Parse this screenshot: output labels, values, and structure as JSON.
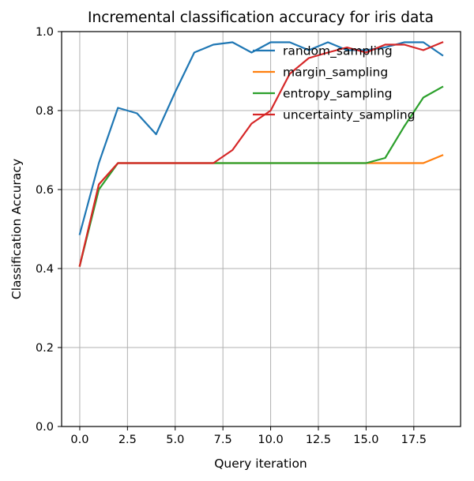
{
  "chart_data": {
    "type": "line",
    "title": "Incremental classification accuracy for iris data",
    "xlabel": "Query iteration",
    "ylabel": "Classification Accuracy",
    "xlim": [
      -0.95,
      19.95
    ],
    "ylim": [
      0.0,
      1.0
    ],
    "grid": true,
    "legend_position": "top-right",
    "x_ticks": [
      "0.0",
      "2.5",
      "5.0",
      "7.5",
      "10.0",
      "12.5",
      "15.0",
      "17.5"
    ],
    "y_ticks": [
      "0.0",
      "0.2",
      "0.4",
      "0.6",
      "0.8",
      "1.0"
    ],
    "x": [
      0,
      1,
      2,
      3,
      4,
      5,
      6,
      7,
      8,
      9,
      10,
      11,
      12,
      13,
      14,
      15,
      16,
      17,
      18,
      19
    ],
    "series": [
      {
        "name": "random_sampling",
        "color": "#1f77b4",
        "values": [
          0.487,
          0.667,
          0.807,
          0.793,
          0.74,
          0.847,
          0.947,
          0.967,
          0.973,
          0.947,
          0.973,
          0.973,
          0.953,
          0.973,
          0.953,
          0.953,
          0.96,
          0.973,
          0.973,
          0.94
        ]
      },
      {
        "name": "margin_sampling",
        "color": "#ff7f0e",
        "values": [
          0.407,
          0.613,
          0.667,
          0.667,
          0.667,
          0.667,
          0.667,
          0.667,
          0.667,
          0.667,
          0.667,
          0.667,
          0.667,
          0.667,
          0.667,
          0.667,
          0.667,
          0.667,
          0.667,
          0.687
        ]
      },
      {
        "name": "entropy_sampling",
        "color": "#2ca02c",
        "values": [
          0.407,
          0.6,
          0.667,
          0.667,
          0.667,
          0.667,
          0.667,
          0.667,
          0.667,
          0.667,
          0.667,
          0.667,
          0.667,
          0.667,
          0.667,
          0.667,
          0.68,
          0.76,
          0.833,
          0.86
        ]
      },
      {
        "name": "uncertainty_sampling",
        "color": "#d62728",
        "values": [
          0.407,
          0.613,
          0.667,
          0.667,
          0.667,
          0.667,
          0.667,
          0.667,
          0.7,
          0.767,
          0.8,
          0.893,
          0.933,
          0.947,
          0.96,
          0.947,
          0.967,
          0.967,
          0.953,
          0.973
        ]
      }
    ]
  }
}
